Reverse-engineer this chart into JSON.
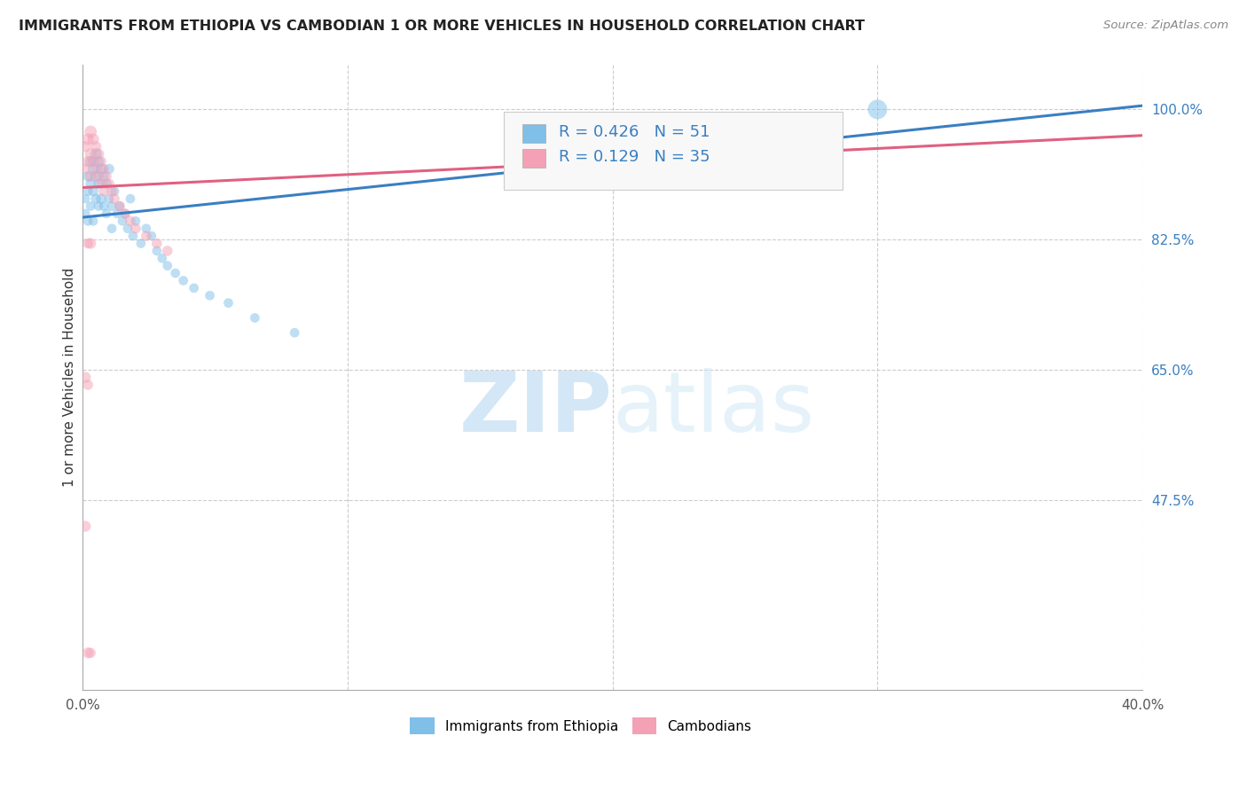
{
  "title": "IMMIGRANTS FROM ETHIOPIA VS CAMBODIAN 1 OR MORE VEHICLES IN HOUSEHOLD CORRELATION CHART",
  "source": "Source: ZipAtlas.com",
  "ylabel": "1 or more Vehicles in Household",
  "ylabel_ticks": [
    "100.0%",
    "82.5%",
    "65.0%",
    "47.5%"
  ],
  "ylabel_values": [
    1.0,
    0.825,
    0.65,
    0.475
  ],
  "xlim": [
    0.0,
    0.4
  ],
  "ylim": [
    0.22,
    1.06
  ],
  "xtick_labels": [
    "0.0%",
    "",
    "",
    "",
    "40.0%"
  ],
  "xtick_values": [
    0.0,
    0.1,
    0.2,
    0.3,
    0.4
  ],
  "R_ethiopia": 0.426,
  "N_ethiopia": 51,
  "R_cambodian": 0.129,
  "N_cambodian": 35,
  "color_ethiopia": "#7fbfe8",
  "color_cambodian": "#f4a0b5",
  "line_color_ethiopia": "#3a7fc1",
  "line_color_cambodian": "#e06080",
  "legend_label_ethiopia": "Immigrants from Ethiopia",
  "legend_label_cambodian": "Cambodians",
  "watermark_zip": "ZIP",
  "watermark_atlas": "atlas",
  "eth_line_x0": 0.0,
  "eth_line_y0": 0.855,
  "eth_line_x1": 0.4,
  "eth_line_y1": 1.005,
  "cam_line_x0": 0.0,
  "cam_line_y0": 0.895,
  "cam_line_x1": 0.4,
  "cam_line_y1": 0.965,
  "ethiopia_x": [
    0.001,
    0.001,
    0.002,
    0.002,
    0.002,
    0.003,
    0.003,
    0.003,
    0.004,
    0.004,
    0.004,
    0.005,
    0.005,
    0.005,
    0.006,
    0.006,
    0.006,
    0.007,
    0.007,
    0.008,
    0.008,
    0.009,
    0.009,
    0.01,
    0.01,
    0.011,
    0.011,
    0.012,
    0.013,
    0.014,
    0.015,
    0.016,
    0.017,
    0.018,
    0.019,
    0.02,
    0.022,
    0.024,
    0.026,
    0.028,
    0.03,
    0.032,
    0.035,
    0.038,
    0.042,
    0.048,
    0.055,
    0.065,
    0.08,
    0.22,
    0.3
  ],
  "ethiopia_y": [
    0.88,
    0.86,
    0.91,
    0.89,
    0.85,
    0.93,
    0.9,
    0.87,
    0.92,
    0.89,
    0.85,
    0.94,
    0.91,
    0.88,
    0.93,
    0.9,
    0.87,
    0.92,
    0.88,
    0.91,
    0.87,
    0.9,
    0.86,
    0.92,
    0.88,
    0.87,
    0.84,
    0.89,
    0.86,
    0.87,
    0.85,
    0.86,
    0.84,
    0.88,
    0.83,
    0.85,
    0.82,
    0.84,
    0.83,
    0.81,
    0.8,
    0.79,
    0.78,
    0.77,
    0.76,
    0.75,
    0.74,
    0.72,
    0.7,
    0.97,
    1.0
  ],
  "ethiopia_sizes": [
    60,
    60,
    70,
    60,
    60,
    80,
    70,
    60,
    80,
    70,
    60,
    90,
    80,
    70,
    80,
    70,
    60,
    80,
    70,
    70,
    60,
    70,
    60,
    70,
    60,
    60,
    60,
    60,
    60,
    60,
    60,
    60,
    60,
    60,
    60,
    60,
    60,
    60,
    60,
    60,
    60,
    60,
    60,
    60,
    60,
    60,
    60,
    60,
    60,
    200,
    250
  ],
  "cambodian_x": [
    0.001,
    0.001,
    0.002,
    0.002,
    0.003,
    0.003,
    0.003,
    0.004,
    0.004,
    0.005,
    0.005,
    0.006,
    0.006,
    0.007,
    0.007,
    0.008,
    0.008,
    0.009,
    0.01,
    0.011,
    0.012,
    0.014,
    0.016,
    0.018,
    0.02,
    0.024,
    0.028,
    0.032,
    0.002,
    0.003,
    0.001,
    0.002,
    0.001,
    0.002,
    0.003
  ],
  "cambodian_y": [
    0.95,
    0.92,
    0.96,
    0.93,
    0.97,
    0.94,
    0.91,
    0.96,
    0.93,
    0.95,
    0.92,
    0.94,
    0.91,
    0.93,
    0.9,
    0.92,
    0.89,
    0.91,
    0.9,
    0.89,
    0.88,
    0.87,
    0.86,
    0.85,
    0.84,
    0.83,
    0.82,
    0.81,
    0.82,
    0.82,
    0.64,
    0.63,
    0.44,
    0.27,
    0.27
  ],
  "cambodian_sizes": [
    80,
    70,
    90,
    80,
    100,
    90,
    80,
    90,
    80,
    80,
    70,
    80,
    70,
    70,
    70,
    70,
    70,
    70,
    70,
    70,
    70,
    70,
    70,
    70,
    70,
    70,
    70,
    70,
    70,
    80,
    80,
    70,
    80,
    80,
    70
  ]
}
